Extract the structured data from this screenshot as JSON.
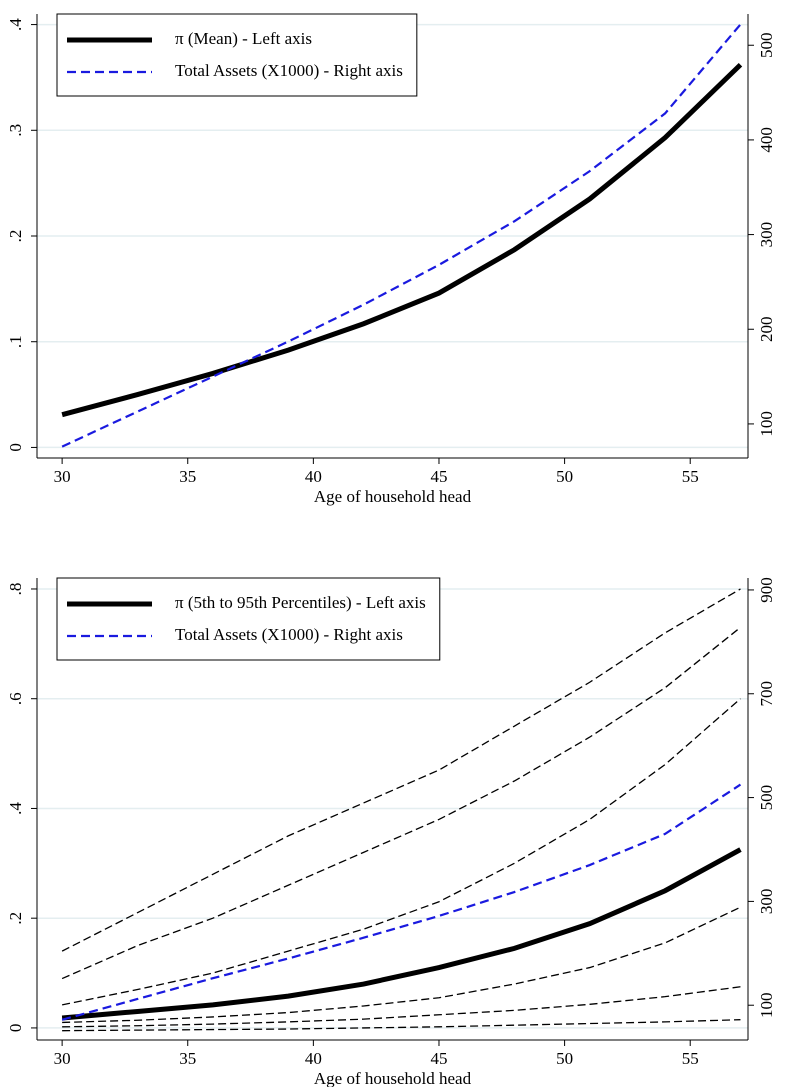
{
  "chart_data": [
    {
      "type": "line",
      "x_label": "Age of household head",
      "x": [
        30,
        33,
        36,
        39,
        42,
        45,
        48,
        51,
        54,
        57
      ],
      "xlim": [
        29,
        57.3
      ],
      "xticks": [
        30,
        35,
        40,
        45,
        50,
        55
      ],
      "ylim": [
        -0.01,
        0.41
      ],
      "yticks": [
        0,
        {
          "value": 0.1,
          "label": ".1"
        },
        {
          "value": 0.2,
          "label": ".2"
        },
        {
          "value": 0.3,
          "label": ".3"
        },
        {
          "value": 0.4,
          "label": ".4"
        }
      ],
      "y2lim": [
        64,
        533
      ],
      "y2ticks": [
        100,
        200,
        300,
        400,
        500
      ],
      "grid": true,
      "legend": "top-left",
      "series": [
        {
          "name": "π (Mean) - Left axis",
          "color": "#000000",
          "style": "solid",
          "values": [
            0.031,
            0.05,
            0.07,
            0.092,
            0.117,
            0.146,
            0.187,
            0.235,
            0.293,
            0.362
          ]
        },
        {
          "name": "Total Assets (X1000) - Right axis",
          "color": "#1a1adf",
          "style": "dashed",
          "axis": "y2",
          "values": [
            76,
            113,
            150,
            187,
            226,
            268,
            314,
            367,
            428,
            522
          ]
        }
      ]
    },
    {
      "type": "line",
      "x_label": "Age of household head",
      "x": [
        30,
        33,
        36,
        39,
        42,
        45,
        48,
        51,
        54,
        57
      ],
      "xlim": [
        29,
        57.3
      ],
      "xticks": [
        30,
        35,
        40,
        45,
        50,
        55
      ],
      "ylim": [
        -0.022,
        0.82
      ],
      "yticks": [
        0,
        {
          "value": 0.2,
          "label": ".2"
        },
        {
          "value": 0.4,
          "label": ".4"
        },
        {
          "value": 0.6,
          "label": ".6"
        },
        {
          "value": 0.8,
          "label": ".8"
        }
      ],
      "y2lim": [
        33,
        923
      ],
      "y2ticks": [
        100,
        300,
        500,
        700,
        900
      ],
      "grid": true,
      "legend": "top-left",
      "series": [
        {
          "name": "π (5th to 95th Percentiles) - Left axis",
          "color": "#000000",
          "style": "solid",
          "values": [
            0.018,
            0.03,
            0.042,
            0.058,
            0.08,
            0.11,
            0.145,
            0.19,
            0.25,
            0.325
          ]
        },
        {
          "name": "Total Assets (X1000) - Right axis",
          "color": "#1a1adf",
          "style": "dashed",
          "axis": "y2",
          "values": [
            72,
            112,
            152,
            190,
            230,
            272,
            318,
            370,
            430,
            525
          ]
        },
        {
          "color": "#000000",
          "style": "thin-dashed",
          "values": [
            0.14,
            0.21,
            0.28,
            0.35,
            0.41,
            0.47,
            0.55,
            0.63,
            0.72,
            0.8
          ]
        },
        {
          "color": "#000000",
          "style": "thin-dashed",
          "values": [
            0.09,
            0.15,
            0.2,
            0.26,
            0.32,
            0.38,
            0.45,
            0.53,
            0.62,
            0.73
          ]
        },
        {
          "color": "#000000",
          "style": "thin-dashed",
          "values": [
            0.042,
            0.07,
            0.1,
            0.14,
            0.18,
            0.23,
            0.3,
            0.38,
            0.48,
            0.6
          ]
        },
        {
          "color": "#000000",
          "style": "thin-dashed",
          "values": [
            0.01,
            0.014,
            0.02,
            0.028,
            0.04,
            0.055,
            0.08,
            0.11,
            0.155,
            0.22
          ]
        },
        {
          "color": "#000000",
          "style": "thin-dashed",
          "values": [
            0.002,
            0.004,
            0.007,
            0.011,
            0.016,
            0.024,
            0.032,
            0.043,
            0.057,
            0.075
          ]
        },
        {
          "color": "#000000",
          "style": "thin-dashed",
          "values": [
            -0.005,
            -0.004,
            -0.003,
            -0.002,
            0,
            0.002,
            0.005,
            0.008,
            0.011,
            0.015
          ]
        }
      ]
    }
  ]
}
